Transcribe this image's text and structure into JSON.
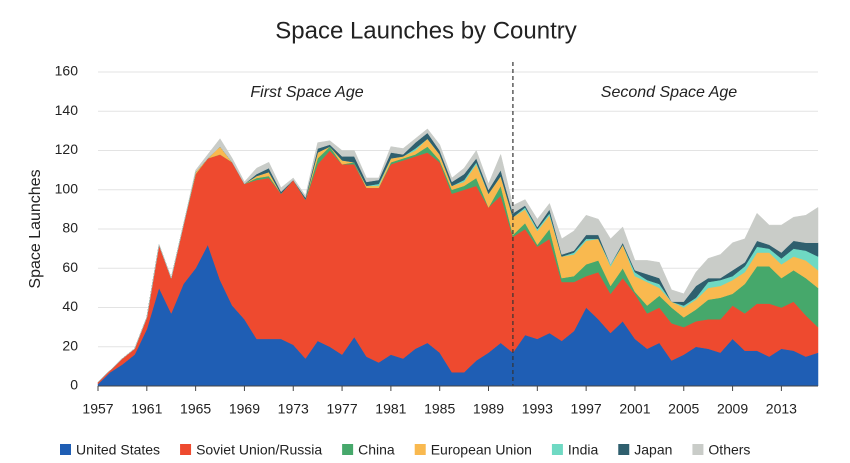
{
  "chart_data": {
    "type": "stacked_area",
    "title": "Space Launches by Country",
    "y_label": "Space Launches",
    "annotations": [
      "First Space Age",
      "Second Space Age"
    ],
    "era_boundary": 1991,
    "x": [
      1957,
      1958,
      1959,
      1960,
      1961,
      1962,
      1963,
      1964,
      1965,
      1966,
      1967,
      1968,
      1969,
      1970,
      1971,
      1972,
      1973,
      1974,
      1975,
      1976,
      1977,
      1978,
      1979,
      1980,
      1981,
      1982,
      1983,
      1984,
      1985,
      1986,
      1987,
      1988,
      1989,
      1990,
      1991,
      1992,
      1993,
      1994,
      1995,
      1996,
      1997,
      1998,
      1999,
      2000,
      2001,
      2002,
      2003,
      2004,
      2005,
      2006,
      2007,
      2008,
      2009,
      2010,
      2011,
      2012,
      2013,
      2014,
      2015,
      2016
    ],
    "xlim": [
      1957,
      2016
    ],
    "xticks": [
      1957,
      1961,
      1965,
      1969,
      1973,
      1977,
      1981,
      1985,
      1989,
      1993,
      1997,
      2001,
      2005,
      2009,
      2013
    ],
    "ylim": [
      0,
      160
    ],
    "yticks": [
      0,
      20,
      40,
      60,
      80,
      100,
      120,
      140,
      160
    ],
    "grid": true,
    "legend": "bottom",
    "series": [
      {
        "name": "United States",
        "color": "#1f5eb4",
        "values": [
          1,
          7,
          11,
          16,
          29,
          50,
          37,
          52,
          60,
          72,
          54,
          41,
          34,
          24,
          24,
          24,
          21,
          14,
          23,
          20,
          16,
          25,
          15,
          12,
          16,
          14,
          19,
          22,
          17,
          7,
          7,
          13,
          17,
          22,
          17,
          26,
          24,
          27,
          23,
          28,
          40,
          34,
          27,
          33,
          24,
          19,
          22,
          13,
          16,
          20,
          19,
          17,
          24,
          18,
          18,
          15,
          19,
          18,
          15,
          17
        ]
      },
      {
        "name": "Soviet Union/Russia",
        "color": "#ee4a2f",
        "values": [
          1,
          1,
          3,
          3,
          6,
          22,
          18,
          30,
          48,
          44,
          64,
          73,
          69,
          81,
          82,
          74,
          84,
          81,
          90,
          100,
          97,
          88,
          86,
          89,
          97,
          101,
          98,
          97,
          97,
          91,
          93,
          89,
          74,
          75,
          59,
          54,
          47,
          48,
          30,
          25,
          16,
          24,
          20,
          22,
          23,
          18,
          18,
          19,
          14,
          13,
          15,
          17,
          17,
          19,
          24,
          27,
          21,
          25,
          21,
          13
        ]
      },
      {
        "name": "China",
        "color": "#46a86b",
        "values": [
          0,
          0,
          0,
          0,
          0,
          0,
          0,
          0,
          0,
          0,
          0,
          0,
          0,
          1,
          1,
          0,
          0,
          0,
          3,
          2,
          0,
          1,
          0,
          0,
          1,
          1,
          1,
          3,
          1,
          2,
          2,
          4,
          0,
          5,
          1,
          3,
          1,
          5,
          2,
          3,
          6,
          6,
          4,
          5,
          1,
          4,
          6,
          8,
          5,
          6,
          10,
          11,
          6,
          15,
          19,
          19,
          15,
          16,
          19,
          20
        ]
      },
      {
        "name": "European Union",
        "color": "#f9b94f",
        "values": [
          0,
          0,
          0,
          0,
          0,
          0,
          0,
          0,
          1,
          0,
          4,
          0,
          0,
          1,
          2,
          0,
          0,
          0,
          3,
          0,
          2,
          0,
          1,
          1,
          2,
          1,
          2,
          4,
          3,
          2,
          2,
          7,
          7,
          5,
          9,
          7,
          7,
          7,
          11,
          11,
          12,
          11,
          10,
          12,
          8,
          12,
          4,
          3,
          5,
          5,
          6,
          6,
          7,
          6,
          7,
          7,
          7,
          7,
          9,
          9
        ]
      },
      {
        "name": "India",
        "color": "#6fd9c3",
        "values": [
          0,
          0,
          0,
          0,
          0,
          0,
          0,
          0,
          0,
          0,
          0,
          0,
          0,
          0,
          0,
          0,
          0,
          0,
          0,
          0,
          0,
          0,
          0,
          1,
          0,
          0,
          1,
          0,
          0,
          0,
          1,
          1,
          0,
          0,
          0,
          1,
          1,
          1,
          0,
          1,
          1,
          0,
          1,
          0,
          2,
          1,
          2,
          0,
          1,
          1,
          3,
          3,
          2,
          3,
          3,
          2,
          3,
          4,
          5,
          7
        ]
      },
      {
        "name": "Japan",
        "color": "#2f5f6e",
        "values": [
          0,
          0,
          0,
          0,
          0,
          0,
          0,
          0,
          0,
          0,
          0,
          0,
          0,
          1,
          2,
          1,
          0,
          1,
          2,
          1,
          2,
          3,
          2,
          2,
          3,
          1,
          3,
          3,
          2,
          2,
          3,
          2,
          2,
          3,
          2,
          1,
          1,
          2,
          1,
          1,
          2,
          2,
          0,
          1,
          1,
          3,
          3,
          0,
          2,
          6,
          2,
          1,
          3,
          2,
          3,
          2,
          3,
          4,
          4,
          7
        ]
      },
      {
        "name": "Others",
        "color": "#c9ccc8",
        "values": [
          0,
          0,
          0,
          0,
          0,
          0,
          0,
          0,
          1,
          2,
          4,
          2,
          1,
          3,
          3,
          2,
          1,
          1,
          3,
          2,
          3,
          3,
          2,
          1,
          3,
          3,
          2,
          2,
          3,
          2,
          3,
          4,
          3,
          8,
          4,
          3,
          4,
          3,
          8,
          10,
          10,
          8,
          13,
          8,
          5,
          7,
          8,
          6,
          4,
          7,
          10,
          12,
          14,
          12,
          14,
          10,
          14,
          12,
          14,
          18
        ]
      }
    ]
  }
}
